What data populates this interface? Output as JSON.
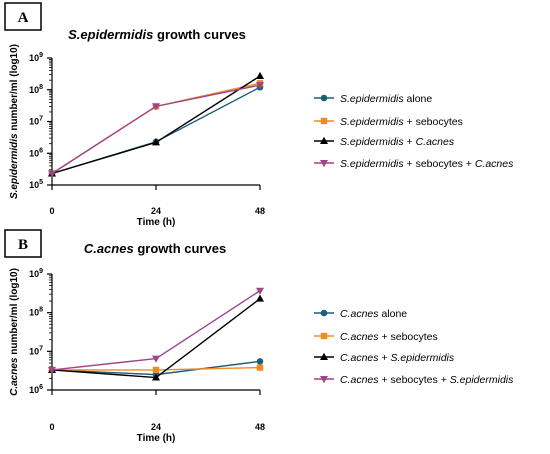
{
  "colors": {
    "blue": "#1f5f7a",
    "orange": "#f28a22",
    "black": "#000000",
    "purple": "#a0448c"
  },
  "panels": [
    {
      "letter": "A",
      "title_italic": "S.epidermidis",
      "title_rest": " growth curves",
      "ylabel_italic": "S.epidermidis",
      "ylabel_rest": " number/ml (log10)",
      "xlabel": "Time (h)"
    },
    {
      "letter": "B",
      "title_italic": "C.acnes",
      "title_rest": " growth curves",
      "ylabel_italic": "C.acnes",
      "ylabel_rest": " number/ml (log10)",
      "xlabel": "Time (h)"
    }
  ],
  "chart_data": [
    {
      "type": "line",
      "title": "S.epidermidis growth curves",
      "xlabel": "Time (h)",
      "ylabel": "S.epidermidis number/ml (log10)",
      "x": [
        0,
        24,
        48
      ],
      "x_ticks": [
        "0",
        "24",
        "48"
      ],
      "y_scale": "log",
      "ylim": [
        100000,
        1000000000
      ],
      "y_ticks": [
        {
          "base": "10",
          "exp": "5",
          "value": 100000
        },
        {
          "base": "10",
          "exp": "6",
          "value": 1000000
        },
        {
          "base": "10",
          "exp": "7",
          "value": 10000000
        },
        {
          "base": "10",
          "exp": "8",
          "value": 100000000
        },
        {
          "base": "10",
          "exp": "9",
          "value": 1000000000
        }
      ],
      "legend_position": "right",
      "series": [
        {
          "legend_parts": [
            {
              "t": "S.epidermidis",
              "i": true
            },
            {
              "t": " alone",
              "i": false
            }
          ],
          "color": "#1f5f7a",
          "marker": "circle",
          "values": [
            230000,
            2300000,
            120000000
          ]
        },
        {
          "legend_parts": [
            {
              "t": "S.epidermidis",
              "i": true
            },
            {
              "t": " + sebocytes",
              "i": false
            }
          ],
          "color": "#f28a22",
          "marker": "square",
          "values": [
            230000,
            30000000,
            160000000
          ]
        },
        {
          "legend_parts": [
            {
              "t": "S.epidermidis",
              "i": true
            },
            {
              "t": " + ",
              "i": false
            },
            {
              "t": "C.acnes",
              "i": true
            }
          ],
          "color": "#000000",
          "marker": "triangle-up",
          "values": [
            230000,
            2200000,
            270000000
          ]
        },
        {
          "legend_parts": [
            {
              "t": "S.epidermidis",
              "i": true
            },
            {
              "t": " + sebocytes + ",
              "i": false
            },
            {
              "t": "C.acnes",
              "i": true
            }
          ],
          "color": "#a0448c",
          "marker": "triangle-down",
          "values": [
            230000,
            30000000,
            140000000
          ]
        }
      ]
    },
    {
      "type": "line",
      "title": "C.acnes growth curves",
      "xlabel": "Time (h)",
      "ylabel": "C.acnes number/ml (log10)",
      "x": [
        0,
        24,
        48
      ],
      "x_ticks": [
        "0",
        "24",
        "48"
      ],
      "y_scale": "log",
      "ylim": [
        1000000,
        1000000000
      ],
      "y_ticks": [
        {
          "base": "10",
          "exp": "6",
          "value": 1000000
        },
        {
          "base": "10",
          "exp": "7",
          "value": 10000000
        },
        {
          "base": "10",
          "exp": "8",
          "value": 100000000
        },
        {
          "base": "10",
          "exp": "9",
          "value": 1000000000
        }
      ],
      "legend_position": "right",
      "series": [
        {
          "legend_parts": [
            {
              "t": "C.acnes",
              "i": true
            },
            {
              "t": " alone",
              "i": false
            }
          ],
          "color": "#1f5f7a",
          "marker": "circle",
          "values": [
            3300000,
            2500000,
            5500000
          ]
        },
        {
          "legend_parts": [
            {
              "t": "C.acnes",
              "i": true
            },
            {
              "t": " + sebocytes",
              "i": false
            }
          ],
          "color": "#f28a22",
          "marker": "square",
          "values": [
            3300000,
            3300000,
            3800000
          ]
        },
        {
          "legend_parts": [
            {
              "t": "C.acnes",
              "i": true
            },
            {
              "t": " + ",
              "i": false
            },
            {
              "t": "S.epidermidis",
              "i": true
            }
          ],
          "color": "#000000",
          "marker": "triangle-up",
          "values": [
            3300000,
            2100000,
            230000000
          ]
        },
        {
          "legend_parts": [
            {
              "t": "C.acnes",
              "i": true
            },
            {
              "t": " + sebocytes + ",
              "i": false
            },
            {
              "t": "S.epidermidis",
              "i": true
            }
          ],
          "color": "#a0448c",
          "marker": "triangle-down",
          "values": [
            3300000,
            6500000,
            370000000
          ]
        }
      ]
    }
  ]
}
